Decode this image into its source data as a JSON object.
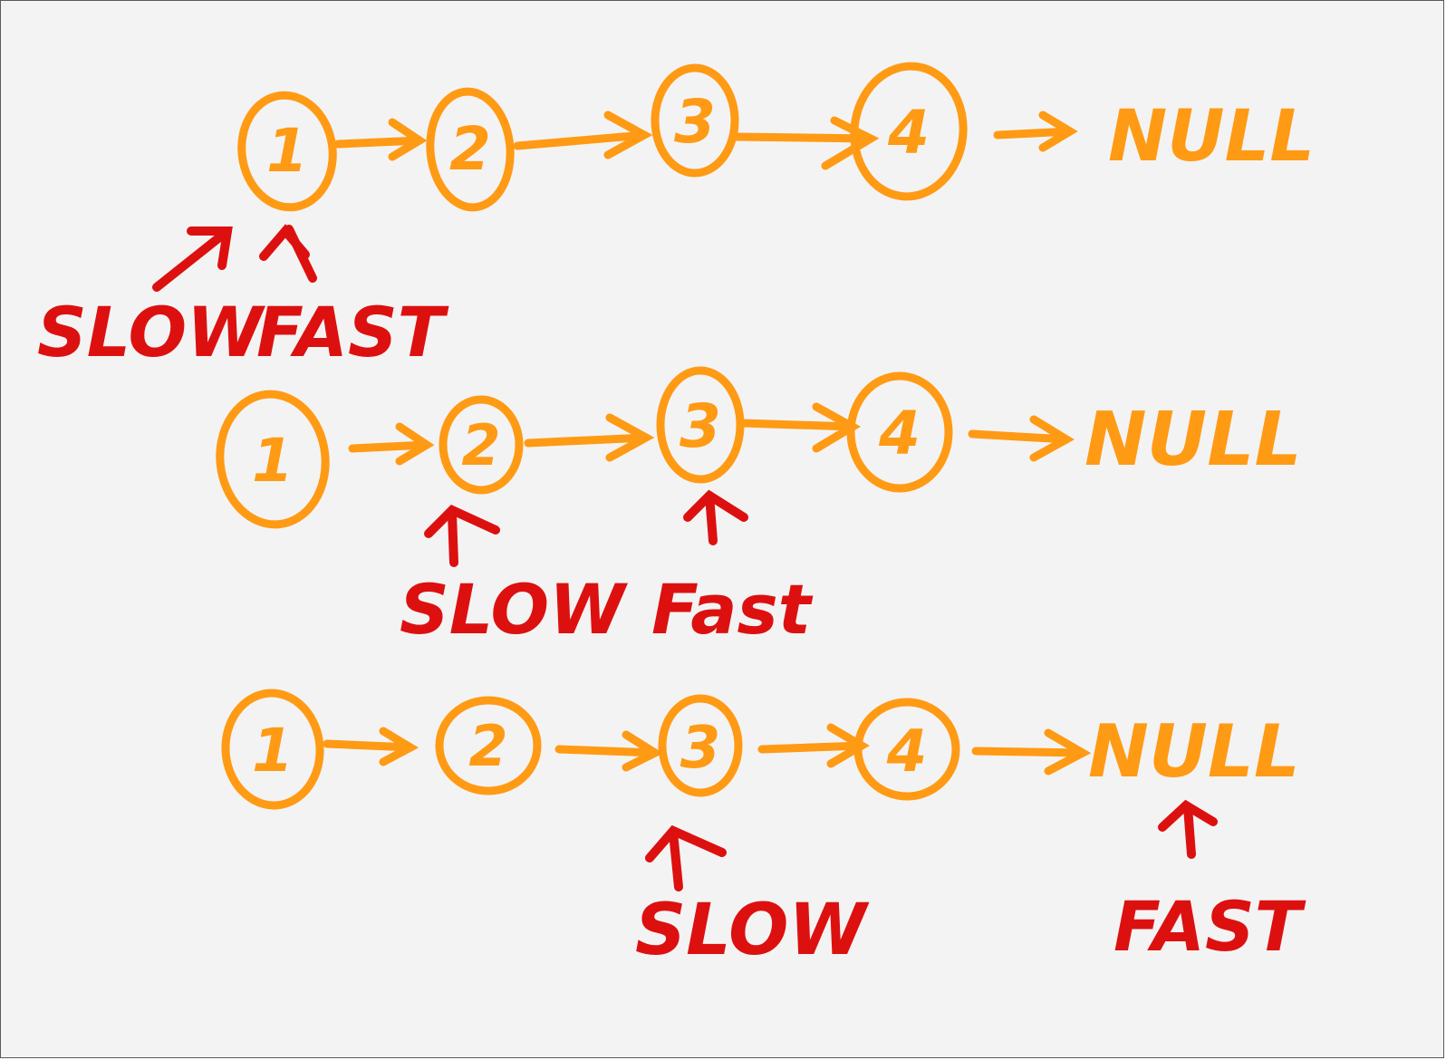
{
  "colors": {
    "background": "#f3f3f3",
    "border": "#5a5a5a",
    "node": "#ff9a14",
    "pointer": "#dd1010"
  },
  "rows": [
    {
      "nodes": [
        "1",
        "2",
        "3",
        "4"
      ],
      "terminal": "NULL",
      "pointers": [
        {
          "label": "SLOW",
          "target_node": 0
        },
        {
          "label": "FAST",
          "target_node": 0
        }
      ]
    },
    {
      "nodes": [
        "1",
        "2",
        "3",
        "4"
      ],
      "terminal": "NULL",
      "pointers": [
        {
          "label": "SLOW",
          "target_node": 1
        },
        {
          "label": "Fast",
          "target_node": 2
        }
      ]
    },
    {
      "nodes": [
        "1",
        "2",
        "3",
        "4"
      ],
      "terminal": "NULL",
      "pointers": [
        {
          "label": "SLOW",
          "target_node": 2
        },
        {
          "label": "FAST",
          "target_node": 4
        }
      ]
    }
  ]
}
